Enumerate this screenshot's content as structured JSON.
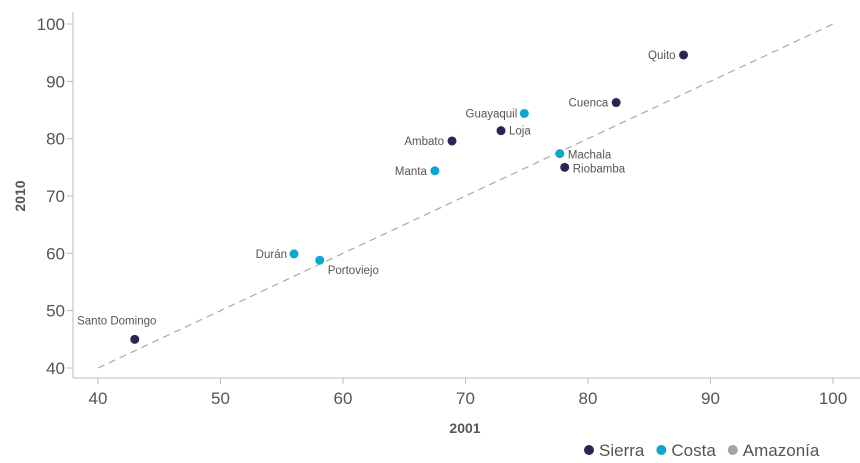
{
  "chart_data": {
    "type": "scatter",
    "xlabel": "2001",
    "ylabel": "2010",
    "xlim": [
      40,
      100
    ],
    "ylim": [
      40,
      100
    ],
    "xticks": [
      "40",
      "50",
      "60",
      "70",
      "80",
      "90",
      "100"
    ],
    "yticks": [
      "40",
      "50",
      "60",
      "70",
      "80",
      "90",
      "100"
    ],
    "reference_line": {
      "from": [
        40,
        40
      ],
      "to": [
        100,
        100
      ],
      "style": "dashed"
    },
    "legend_position": "bottom-right",
    "series": [
      {
        "name": "Sierra",
        "color": "#2a2556",
        "points": [
          {
            "label": "Quito",
            "x": 87.8,
            "y": 94.6
          },
          {
            "label": "Cuenca",
            "x": 82.3,
            "y": 86.3
          },
          {
            "label": "Loja",
            "x": 72.9,
            "y": 81.4
          },
          {
            "label": "Ambato",
            "x": 68.9,
            "y": 79.6
          },
          {
            "label": "Riobamba",
            "x": 78.1,
            "y": 75.0
          },
          {
            "label": "Santo Domingo",
            "x": 43.0,
            "y": 45.0
          }
        ]
      },
      {
        "name": "Costa",
        "color": "#0fa5d3",
        "points": [
          {
            "label": "Guayaquil",
            "x": 74.8,
            "y": 84.4
          },
          {
            "label": "Machala",
            "x": 77.7,
            "y": 77.4
          },
          {
            "label": "Manta",
            "x": 67.5,
            "y": 74.4
          },
          {
            "label": "Durán",
            "x": 56.0,
            "y": 59.9
          },
          {
            "label": "Portoviejo",
            "x": 58.1,
            "y": 58.8
          }
        ]
      },
      {
        "name": "Amazonía",
        "color": "#a3a3a3",
        "points": []
      }
    ]
  }
}
